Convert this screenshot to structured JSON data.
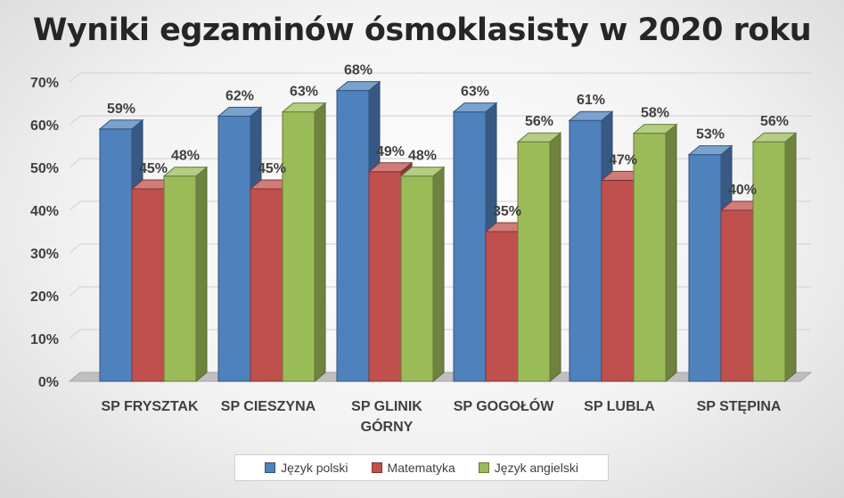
{
  "chart_data": {
    "type": "bar",
    "title": "Wyniki egzaminów ósmoklasisty w 2020 roku",
    "categories": [
      [
        "SP FRYSZTAK"
      ],
      [
        "SP CIESZYNA"
      ],
      [
        "SP GLINIK",
        "GÓRNY"
      ],
      [
        "SP GOGOŁÓW"
      ],
      [
        "SP LUBLA"
      ],
      [
        "SP STĘPINA"
      ]
    ],
    "series": [
      {
        "name": "Język polski",
        "values": [
          59,
          62,
          68,
          63,
          61,
          53
        ],
        "labels": [
          "59%",
          "62%",
          "68%",
          "63%",
          "61%",
          "53%"
        ],
        "color": "#4f81bd"
      },
      {
        "name": "Matematyka",
        "values": [
          45,
          45,
          49,
          35,
          47,
          40
        ],
        "labels": [
          "45%",
          "45%",
          "49%",
          "35%",
          "47%",
          "40%"
        ],
        "color": "#c0504d"
      },
      {
        "name": "Język angielski",
        "values": [
          48,
          63,
          48,
          56,
          58,
          56
        ],
        "labels": [
          "48%",
          "63%",
          "48%",
          "56%",
          "58%",
          "56%"
        ],
        "color": "#9bbb59"
      }
    ],
    "ylim": [
      0,
      70
    ],
    "yticks": [
      0,
      10,
      20,
      30,
      40,
      50,
      60,
      70
    ],
    "ytick_labels": [
      "0%",
      "10%",
      "20%",
      "30%",
      "40%",
      "50%",
      "60%",
      "70%"
    ],
    "grid": true,
    "legend_position": "bottom",
    "style": "3d-clustered"
  }
}
